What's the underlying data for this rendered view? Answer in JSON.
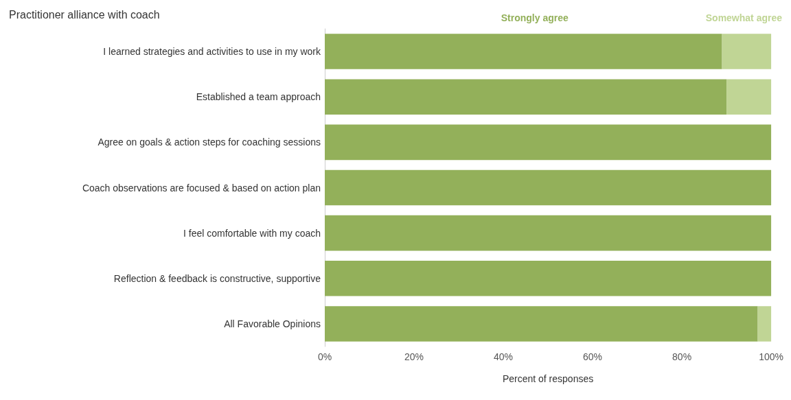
{
  "chart_data": {
    "type": "bar",
    "orientation": "horizontal",
    "stacked": true,
    "title": "Practitioner alliance with coach",
    "xlabel": "Percent of responses",
    "categories": [
      "I learned strategies and activities to use in my work",
      "Established a team approach",
      "Agree on goals & action steps for coaching sessions",
      "Coach observations are focused & based on action plan",
      "I feel comfortable with my coach",
      "Reflection & feedback is constructive, supportive",
      "All Favorable Opinions"
    ],
    "series": [
      {
        "name": "Strongly agree",
        "color": "#93b05a",
        "values": [
          89,
          90,
          100,
          100,
          100,
          100,
          97
        ]
      },
      {
        "name": "Somewhat agree",
        "color": "#c0d595",
        "values": [
          11,
          10,
          0,
          0,
          0,
          0,
          3
        ]
      }
    ],
    "xlim": [
      0,
      100
    ],
    "xticks": [
      {
        "value": 0,
        "label": "0%"
      },
      {
        "value": 20,
        "label": "20%"
      },
      {
        "value": 40,
        "label": "40%"
      },
      {
        "value": 60,
        "label": "60%"
      },
      {
        "value": 80,
        "label": "80%"
      },
      {
        "value": 100,
        "label": "100%"
      }
    ],
    "grid": false,
    "legend": "top right"
  }
}
